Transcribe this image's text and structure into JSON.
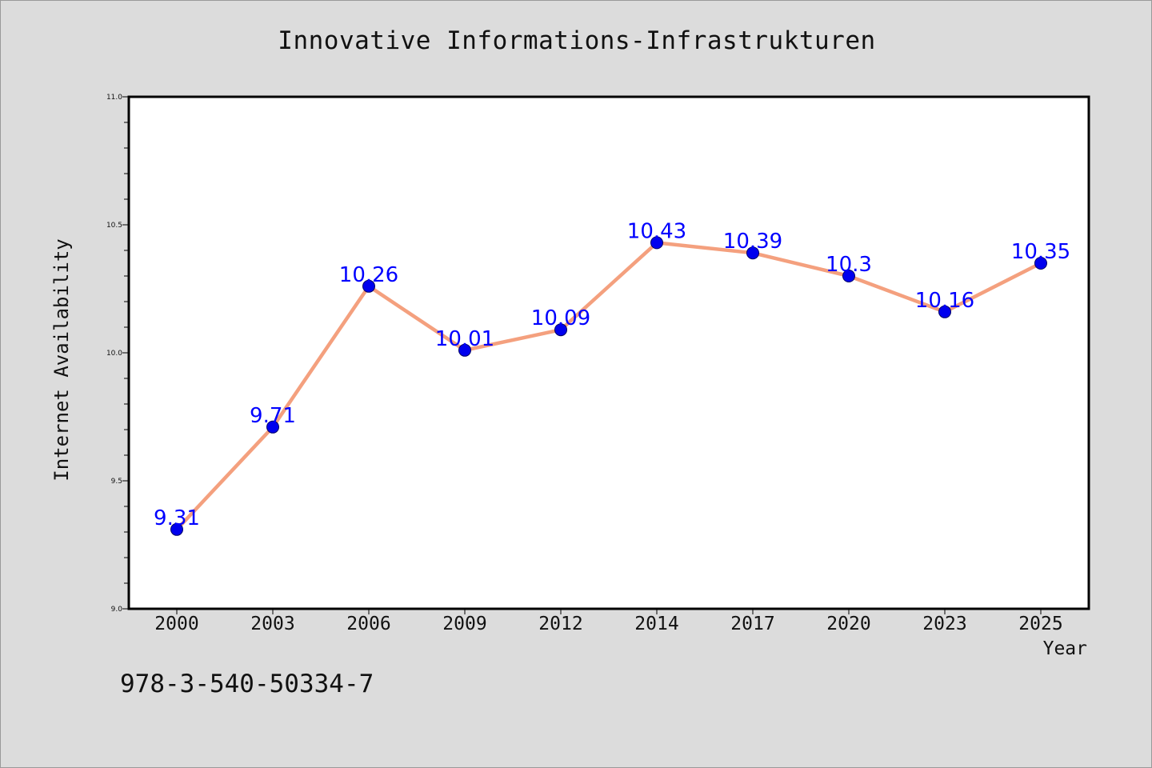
{
  "chart_data": {
    "type": "line",
    "title": "Innovative Informations-Infrastrukturen",
    "xlabel": "Year",
    "ylabel": "Internet Availability",
    "categories": [
      "2000",
      "2003",
      "2006",
      "2009",
      "2012",
      "2014",
      "2017",
      "2020",
      "2023",
      "2025"
    ],
    "series": [
      {
        "values": [
          9.31,
          9.71,
          10.26,
          10.01,
          10.09,
          10.43,
          10.39,
          10.3,
          10.16,
          10.35
        ],
        "data_labels": [
          "9.31",
          "9.71",
          "10.26",
          "10.01",
          "10.09",
          "10.43",
          "10.39",
          "10.3",
          "10.16",
          "10.35"
        ],
        "line_color": "#f4a07e",
        "marker_color": "#0000ee",
        "label_color": "#0000ff"
      }
    ],
    "ylim": [
      9.0,
      11.0
    ],
    "yticks": [
      9.0,
      9.5,
      10.0,
      10.5,
      11.0
    ],
    "ytick_labels": [
      "9.0",
      "9.5",
      "10.0",
      "10.5",
      "11.0"
    ],
    "grid": false,
    "legend": "none"
  },
  "annotation": {
    "isbn": "978-3-540-50334-7"
  },
  "colors": {
    "figure_background": "#dcdcdc",
    "plot_background": "#ffffff",
    "axes": "#000000"
  }
}
